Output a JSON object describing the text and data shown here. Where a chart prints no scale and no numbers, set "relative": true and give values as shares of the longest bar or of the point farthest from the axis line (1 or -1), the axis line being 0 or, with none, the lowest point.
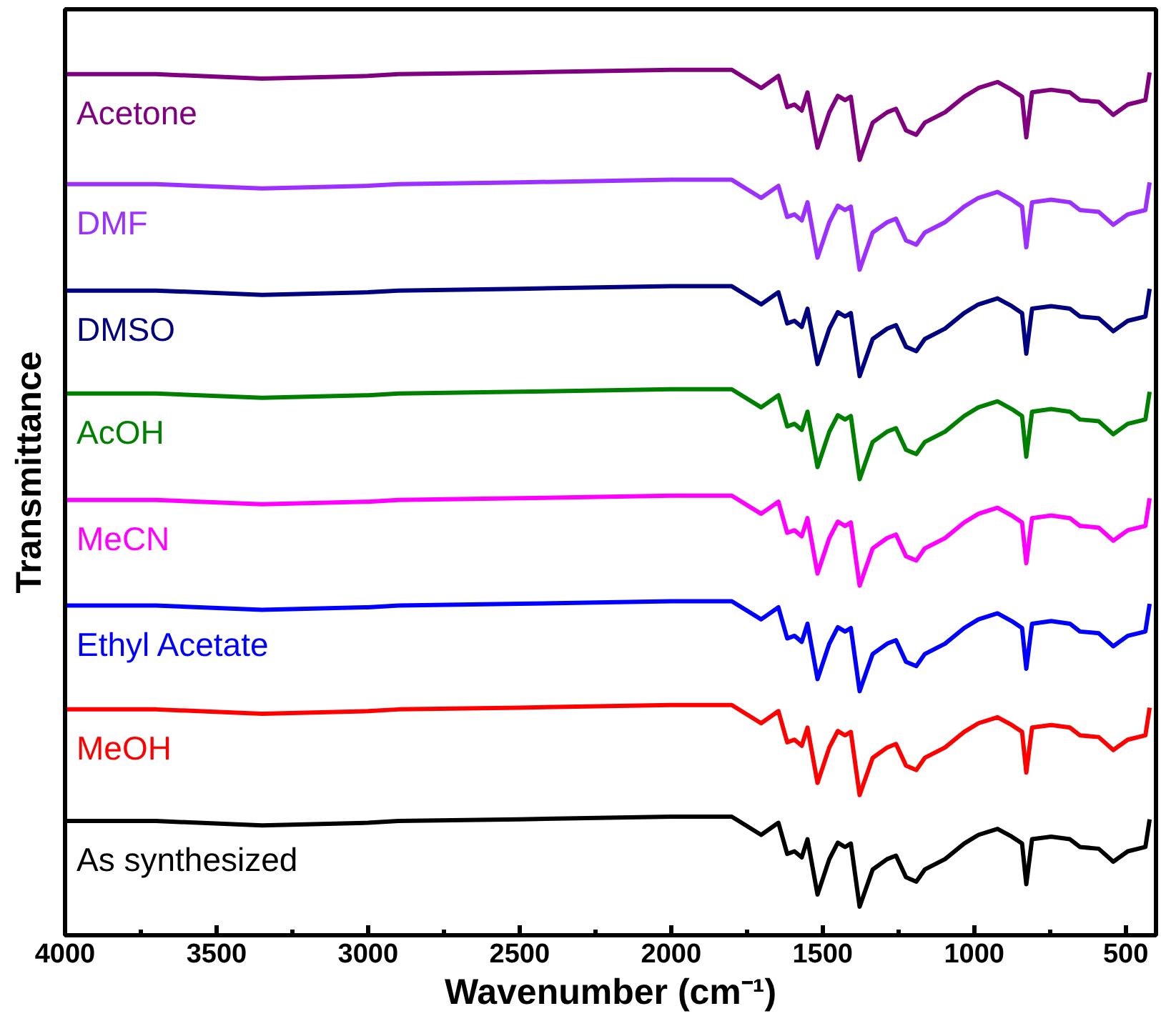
{
  "chart_data": {
    "type": "line",
    "relative": true,
    "xlabel": "Wavenumber (cm⁻¹)",
    "ylabel": "Transmittance",
    "xlim": [
      4000,
      400
    ],
    "xticks": [
      4000,
      3500,
      3000,
      2500,
      2000,
      1500,
      1000,
      500
    ],
    "grid": false,
    "tick_labels": "x",
    "line_style": "solid",
    "marker": "none",
    "x": [
      4000,
      3700,
      3350,
      3000,
      2900,
      2500,
      2000,
      1800,
      1703,
      1646,
      1617,
      1593,
      1569,
      1550,
      1517,
      1478,
      1450,
      1426,
      1407,
      1378,
      1335,
      1287,
      1258,
      1225,
      1191,
      1163,
      1096,
      1033,
      986,
      923,
      876,
      842,
      828,
      809,
      746,
      684,
      651,
      589,
      541,
      493,
      435,
      421
    ],
    "series": [
      {
        "name": "As synthesized",
        "color": "#000000",
        "values": [
          0.132,
          0.132,
          0.127,
          0.13,
          0.132,
          0.134,
          0.137,
          0.137,
          0.116,
          0.13,
          0.094,
          0.097,
          0.09,
          0.111,
          0.047,
          0.088,
          0.107,
          0.102,
          0.106,
          0.033,
          0.076,
          0.088,
          0.092,
          0.067,
          0.062,
          0.076,
          0.088,
          0.106,
          0.116,
          0.123,
          0.114,
          0.106,
          0.059,
          0.111,
          0.114,
          0.111,
          0.102,
          0.1,
          0.085,
          0.097,
          0.102,
          0.134
        ]
      },
      {
        "name": "MeOH",
        "color": "#ff0000",
        "values": [
          0.261,
          0.261,
          0.256,
          0.259,
          0.261,
          0.263,
          0.266,
          0.266,
          0.245,
          0.259,
          0.223,
          0.226,
          0.219,
          0.24,
          0.176,
          0.217,
          0.236,
          0.231,
          0.235,
          0.162,
          0.205,
          0.217,
          0.221,
          0.196,
          0.191,
          0.205,
          0.217,
          0.235,
          0.245,
          0.252,
          0.243,
          0.235,
          0.188,
          0.24,
          0.243,
          0.24,
          0.231,
          0.229,
          0.214,
          0.226,
          0.231,
          0.263
        ]
      },
      {
        "name": "Ethyl Acetate",
        "color": "#0000ff",
        "values": [
          0.381,
          0.381,
          0.376,
          0.379,
          0.381,
          0.383,
          0.386,
          0.386,
          0.365,
          0.379,
          0.343,
          0.346,
          0.339,
          0.36,
          0.296,
          0.337,
          0.356,
          0.351,
          0.355,
          0.282,
          0.325,
          0.337,
          0.341,
          0.316,
          0.311,
          0.325,
          0.337,
          0.355,
          0.365,
          0.372,
          0.363,
          0.355,
          0.308,
          0.36,
          0.363,
          0.36,
          0.351,
          0.349,
          0.334,
          0.346,
          0.351,
          0.383
        ]
      },
      {
        "name": "MeCN",
        "color": "#ff00ff",
        "values": [
          0.503,
          0.503,
          0.498,
          0.501,
          0.503,
          0.505,
          0.508,
          0.508,
          0.487,
          0.501,
          0.465,
          0.468,
          0.461,
          0.482,
          0.418,
          0.459,
          0.478,
          0.473,
          0.477,
          0.404,
          0.447,
          0.459,
          0.463,
          0.438,
          0.433,
          0.447,
          0.459,
          0.477,
          0.487,
          0.494,
          0.485,
          0.477,
          0.43,
          0.482,
          0.485,
          0.482,
          0.473,
          0.471,
          0.456,
          0.468,
          0.473,
          0.505
        ]
      },
      {
        "name": "AcOH",
        "color": "#008000",
        "values": [
          0.626,
          0.626,
          0.621,
          0.624,
          0.626,
          0.628,
          0.631,
          0.631,
          0.61,
          0.624,
          0.588,
          0.591,
          0.584,
          0.605,
          0.541,
          0.582,
          0.601,
          0.596,
          0.6,
          0.527,
          0.57,
          0.582,
          0.586,
          0.561,
          0.556,
          0.57,
          0.582,
          0.6,
          0.61,
          0.617,
          0.608,
          0.6,
          0.553,
          0.605,
          0.608,
          0.605,
          0.596,
          0.594,
          0.579,
          0.591,
          0.596,
          0.628
        ]
      },
      {
        "name": "DMSO",
        "color": "#000080",
        "values": [
          0.745,
          0.745,
          0.74,
          0.743,
          0.745,
          0.747,
          0.75,
          0.75,
          0.729,
          0.743,
          0.707,
          0.71,
          0.703,
          0.724,
          0.66,
          0.701,
          0.72,
          0.715,
          0.719,
          0.646,
          0.689,
          0.701,
          0.705,
          0.68,
          0.675,
          0.689,
          0.701,
          0.719,
          0.729,
          0.736,
          0.727,
          0.719,
          0.672,
          0.724,
          0.727,
          0.724,
          0.715,
          0.713,
          0.698,
          0.71,
          0.715,
          0.747
        ]
      },
      {
        "name": "DMF",
        "color": "#9b30ff",
        "values": [
          0.868,
          0.868,
          0.863,
          0.866,
          0.868,
          0.87,
          0.873,
          0.873,
          0.852,
          0.866,
          0.83,
          0.833,
          0.826,
          0.847,
          0.783,
          0.824,
          0.843,
          0.838,
          0.842,
          0.769,
          0.812,
          0.824,
          0.828,
          0.803,
          0.798,
          0.812,
          0.824,
          0.842,
          0.852,
          0.859,
          0.85,
          0.842,
          0.795,
          0.847,
          0.85,
          0.847,
          0.838,
          0.836,
          0.821,
          0.833,
          0.838,
          0.87
        ]
      },
      {
        "name": "Acetone",
        "color": "#800080",
        "values": [
          0.995,
          0.995,
          0.99,
          0.993,
          0.995,
          0.997,
          1.0,
          1.0,
          0.979,
          0.993,
          0.957,
          0.96,
          0.953,
          0.974,
          0.91,
          0.951,
          0.97,
          0.965,
          0.969,
          0.896,
          0.939,
          0.951,
          0.955,
          0.93,
          0.925,
          0.939,
          0.951,
          0.969,
          0.979,
          0.986,
          0.977,
          0.969,
          0.922,
          0.974,
          0.977,
          0.974,
          0.965,
          0.963,
          0.948,
          0.96,
          0.965,
          0.997
        ]
      }
    ]
  }
}
